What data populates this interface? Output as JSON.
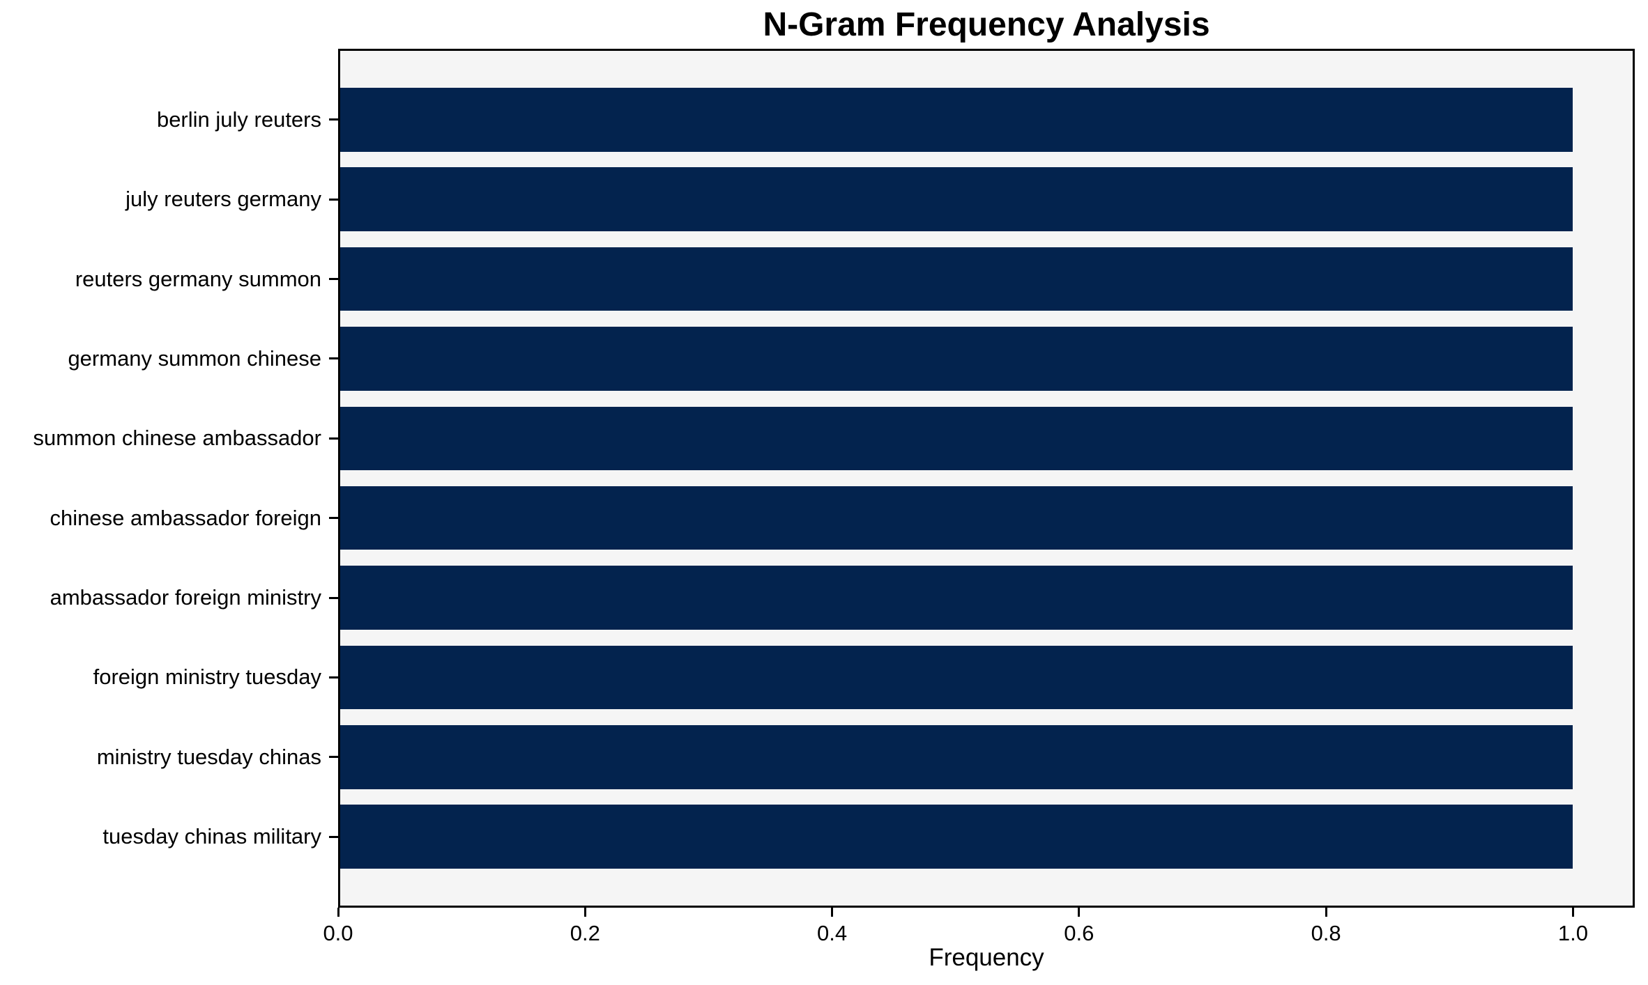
{
  "chart_data": {
    "type": "bar",
    "orientation": "horizontal",
    "title": "N-Gram Frequency Analysis",
    "xlabel": "Frequency",
    "ylabel": "",
    "categories": [
      "berlin july reuters",
      "july reuters germany",
      "reuters germany summon",
      "germany summon chinese",
      "summon chinese ambassador",
      "chinese ambassador foreign",
      "ambassador foreign ministry",
      "foreign ministry tuesday",
      "ministry tuesday chinas",
      "tuesday chinas military"
    ],
    "values": [
      1.0,
      1.0,
      1.0,
      1.0,
      1.0,
      1.0,
      1.0,
      1.0,
      1.0,
      1.0
    ],
    "xlim": [
      0,
      1.05
    ],
    "x_ticks": [
      0.0,
      0.2,
      0.4,
      0.6,
      0.8,
      1.0
    ],
    "x_tick_labels": [
      "0.0",
      "0.2",
      "0.4",
      "0.6",
      "0.8",
      "1.0"
    ],
    "grid": false,
    "legend": null,
    "bar_height_fraction": 0.8,
    "colors": {
      "bar": "#03234e",
      "plot_background": "#f5f5f5",
      "figure_background": "#ffffff",
      "spine": "#000000",
      "text": "#000000"
    }
  }
}
